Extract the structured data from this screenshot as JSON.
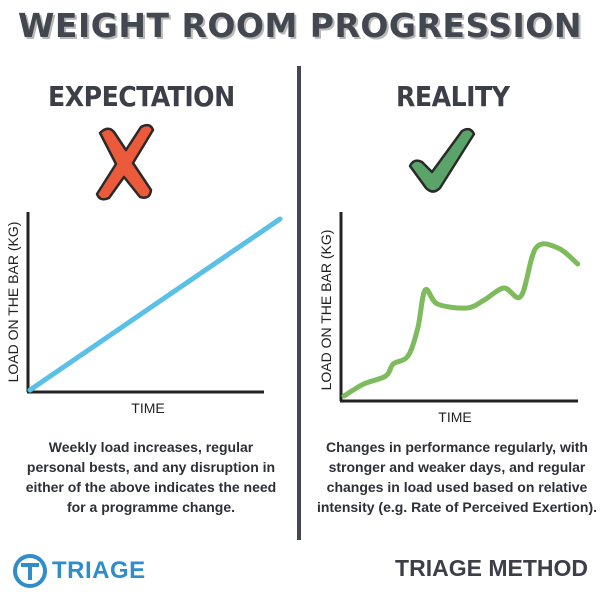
{
  "title": "WEIGHT ROOM PROGRESSION",
  "panels": {
    "expectation": {
      "heading": "EXPECTATION",
      "mark": "cross-icon",
      "caption": "Weekly load increases, regular personal bests, and any disruption in either of the above indicates the need for a programme change."
    },
    "reality": {
      "heading": "REALITY",
      "mark": "check-icon",
      "caption": "Changes in performance regularly, with stronger and weaker days, and regular changes in load used based on relative intensity (e.g. Rate of Perceived Exertion)."
    }
  },
  "footer": {
    "brand": "TRIAGE",
    "method": "TRIAGE METHOD"
  },
  "colors": {
    "expectation_line": "#5bc0e6",
    "reality_line": "#7dbb5d",
    "cross": "#ec5a3c",
    "check": "#5aa469"
  },
  "chart_data": [
    {
      "type": "line",
      "xlabel": "TIME",
      "ylabel": "LOAD ON THE BAR (KG)",
      "x": [
        0,
        1
      ],
      "series": [
        {
          "values": [
            0,
            0.9
          ]
        }
      ],
      "xlim": [
        0,
        1
      ],
      "ylim": [
        0,
        1
      ]
    },
    {
      "type": "line",
      "xlabel": "TIME",
      "ylabel": "LOAD ON THE BAR (KG)",
      "x": [
        0,
        0.08,
        0.17,
        0.2,
        0.26,
        0.3,
        0.33,
        0.38,
        0.5,
        0.57,
        0.65,
        0.72,
        0.78,
        0.87,
        0.95
      ],
      "series": [
        {
          "values": [
            0.02,
            0.08,
            0.12,
            0.18,
            0.22,
            0.36,
            0.55,
            0.48,
            0.46,
            0.5,
            0.56,
            0.52,
            0.76,
            0.76,
            0.68
          ]
        }
      ],
      "xlim": [
        0,
        1
      ],
      "ylim": [
        0,
        1
      ]
    }
  ]
}
